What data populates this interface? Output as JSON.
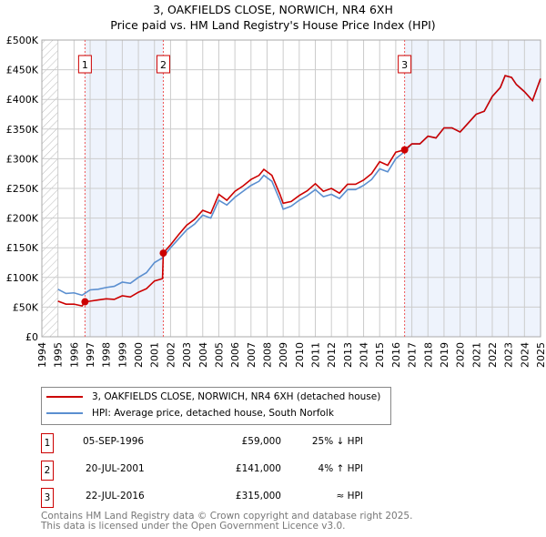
{
  "chart_data": {
    "type": "line",
    "title": "3, OAKFIELDS CLOSE, NORWICH, NR4 6XH",
    "subtitle": "Price paid vs. HM Land Registry's House Price Index (HPI)",
    "xlim": [
      1994,
      2025
    ],
    "ylim": [
      0,
      500000
    ],
    "x_ticks": [
      "1994",
      "1995",
      "1996",
      "1997",
      "1998",
      "1999",
      "2000",
      "2001",
      "2002",
      "2003",
      "2004",
      "2005",
      "2006",
      "2007",
      "2008",
      "2009",
      "2010",
      "2011",
      "2012",
      "2013",
      "2014",
      "2015",
      "2016",
      "2017",
      "2018",
      "2019",
      "2020",
      "2021",
      "2022",
      "2023",
      "2024",
      "2025"
    ],
    "y_ticks": [
      {
        "v": 0,
        "label": "£0"
      },
      {
        "v": 50000,
        "label": "£50K"
      },
      {
        "v": 100000,
        "label": "£100K"
      },
      {
        "v": 150000,
        "label": "£150K"
      },
      {
        "v": 200000,
        "label": "£200K"
      },
      {
        "v": 250000,
        "label": "£250K"
      },
      {
        "v": 300000,
        "label": "£300K"
      },
      {
        "v": 350000,
        "label": "£350K"
      },
      {
        "v": 400000,
        "label": "£400K"
      },
      {
        "v": 450000,
        "label": "£450K"
      },
      {
        "v": 500000,
        "label": "£500K"
      }
    ],
    "grid": true,
    "series": [
      {
        "name": "3, OAKFIELDS CLOSE, NORWICH, NR4 6XH (detached house)",
        "color": "#cc0000",
        "x": [
          1995,
          1995.5,
          1996,
          1996.5,
          1996.68,
          1997,
          1997.5,
          1998,
          1998.5,
          1999,
          1999.5,
          2000,
          2000.5,
          2001,
          2001.5,
          2001.55,
          2002,
          2002.5,
          2003,
          2003.5,
          2004,
          2004.5,
          2005,
          2005.5,
          2006,
          2006.5,
          2007,
          2007.5,
          2007.8,
          2008.3,
          2008.8,
          2009,
          2009.5,
          2010,
          2010.5,
          2011,
          2011.5,
          2012,
          2012.5,
          2013,
          2013.5,
          2014,
          2014.5,
          2015,
          2015.5,
          2016,
          2016.55,
          2017,
          2017.5,
          2018,
          2018.5,
          2019,
          2019.5,
          2020,
          2020.5,
          2021,
          2021.5,
          2022,
          2022.5,
          2022.8,
          2023.2,
          2023.5,
          2024,
          2024.5,
          2025
        ],
        "y": [
          60000,
          55000,
          55000,
          52000,
          59000,
          60000,
          62000,
          64000,
          63000,
          69000,
          67000,
          75000,
          81000,
          94000,
          98000,
          141000,
          155000,
          172000,
          188000,
          198000,
          213000,
          208000,
          240000,
          230000,
          245000,
          254000,
          265000,
          272000,
          282000,
          272000,
          240000,
          225000,
          228000,
          238000,
          246000,
          258000,
          245000,
          250000,
          242000,
          257000,
          257000,
          264000,
          275000,
          295000,
          289000,
          311000,
          315000,
          325000,
          325000,
          338000,
          335000,
          352000,
          352000,
          345000,
          360000,
          375000,
          380000,
          405000,
          420000,
          440000,
          437000,
          425000,
          413000,
          398000,
          435000
        ]
      },
      {
        "name": "HPI: Average price, detached house, South Norfolk",
        "color": "#5b8fd0",
        "x": [
          1995,
          1995.5,
          1996,
          1996.5,
          1997,
          1997.5,
          1998,
          1998.5,
          1999,
          1999.5,
          2000,
          2000.5,
          2001,
          2001.5,
          2002,
          2002.5,
          2003,
          2003.5,
          2004,
          2004.5,
          2005,
          2005.5,
          2006,
          2006.5,
          2007,
          2007.5,
          2007.8,
          2008.3,
          2008.8,
          2009,
          2009.5,
          2010,
          2010.5,
          2011,
          2011.5,
          2012,
          2012.5,
          2013,
          2013.5,
          2014,
          2014.5,
          2015,
          2015.5,
          2016,
          2016.55,
          2017,
          2017.5,
          2018,
          2018.5,
          2019,
          2019.5,
          2020,
          2020.5,
          2021,
          2021.5,
          2022,
          2022.5,
          2022.8,
          2023.2,
          2023.5,
          2024,
          2024.5,
          2025
        ],
        "y": [
          80000,
          73000,
          74000,
          70000,
          79000,
          80000,
          83000,
          85000,
          92000,
          90000,
          100000,
          108000,
          125000,
          133000,
          150000,
          165000,
          180000,
          190000,
          205000,
          200000,
          230000,
          222000,
          235000,
          245000,
          255000,
          262000,
          272000,
          262000,
          230000,
          215000,
          220000,
          230000,
          238000,
          248000,
          236000,
          240000,
          233000,
          248000,
          248000,
          255000,
          265000,
          283000,
          278000,
          300000,
          312000,
          325000,
          325000,
          338000,
          335000,
          352000,
          352000,
          345000,
          360000,
          375000,
          380000,
          405000,
          420000,
          440000,
          437000,
          425000,
          413000,
          398000,
          435000
        ]
      }
    ],
    "sales": [
      {
        "num": "1",
        "x": 1996.68,
        "y": 59000,
        "date": "05-SEP-1996",
        "price": "£59,000",
        "hpi": "25% ↓ HPI"
      },
      {
        "num": "2",
        "x": 2001.55,
        "y": 141000,
        "date": "20-JUL-2001",
        "price": "£141,000",
        "hpi": "4% ↑ HPI"
      },
      {
        "num": "3",
        "x": 2016.55,
        "y": 315000,
        "date": "22-JUL-2016",
        "price": "£315,000",
        "hpi": "≈ HPI"
      }
    ],
    "shaded_ranges": [
      [
        1996.68,
        2001.55
      ],
      [
        2016.55,
        2025
      ]
    ]
  },
  "footer": {
    "line1": "Contains HM Land Registry data © Crown copyright and database right 2025.",
    "line2": "This data is licensed under the Open Government Licence v3.0."
  }
}
